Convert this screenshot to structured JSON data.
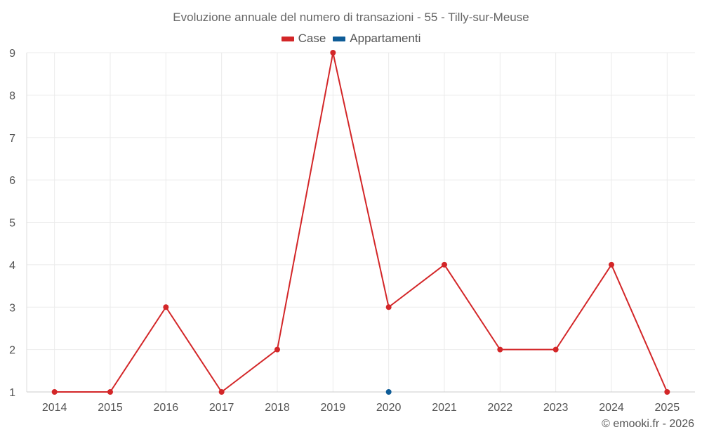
{
  "chart_data": {
    "type": "line",
    "title": "Evoluzione annuale del numero di transazioni - 55 - Tilly-sur-Meuse",
    "xlabel": "",
    "ylabel": "",
    "categories": [
      "2014",
      "2015",
      "2016",
      "2017",
      "2018",
      "2019",
      "2020",
      "2021",
      "2022",
      "2023",
      "2024",
      "2025"
    ],
    "ylim": [
      1,
      9
    ],
    "yticks": [
      1,
      2,
      3,
      4,
      5,
      6,
      7,
      8,
      9
    ],
    "grid": true,
    "legend_position": "top-center",
    "series": [
      {
        "name": "Case",
        "color": "#d32628",
        "values": [
          1,
          1,
          3,
          1,
          2,
          9,
          3,
          4,
          2,
          2,
          4,
          1
        ]
      },
      {
        "name": "Appartamenti",
        "color": "#0e5c97",
        "values": [
          null,
          null,
          null,
          null,
          null,
          null,
          1,
          null,
          null,
          null,
          null,
          null
        ]
      }
    ]
  },
  "footer": {
    "copyright": "© emooki.fr - 2026"
  }
}
